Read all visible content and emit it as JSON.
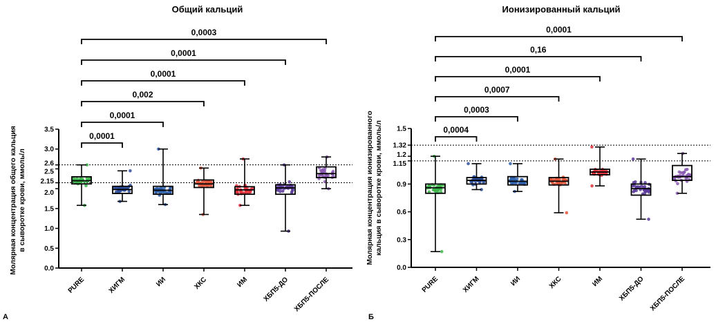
{
  "chart_data": [
    {
      "type": "box",
      "panel_label": "А",
      "title": "Общий кальций",
      "ylabel_lines": [
        "Молярная концентрация общего кальция",
        "в сыворотке крови, ммоль/л"
      ],
      "ylim": [
        0,
        3.5
      ],
      "yticks": [
        "0.0",
        "0.5",
        "1.0",
        "1.5",
        "2.0",
        "2.15",
        "2.5",
        "2.6",
        "3.0",
        "3.5"
      ],
      "ytick_values": [
        0,
        0.5,
        1.0,
        1.5,
        2.0,
        2.15,
        2.5,
        2.6,
        3.0,
        3.5
      ],
      "reference_lines": [
        2.15,
        2.6
      ],
      "categories": [
        "PURE",
        "ХИГМ",
        "ИИ",
        "ХКС",
        "ИМ",
        "ХБП5-ДО",
        "ХБП5-ПОСЛЕ"
      ],
      "colors": [
        "#3cb54a",
        "#2e4f9e",
        "#2e5faa",
        "#e0553a",
        "#e0303a",
        "#5a3a9a",
        "#8a5ab0"
      ],
      "boxes": [
        {
          "min": 1.58,
          "q1": 2.12,
          "median": 2.2,
          "q3": 2.3,
          "max": 2.6
        },
        {
          "min": 1.68,
          "q1": 1.88,
          "median": 1.98,
          "q3": 2.06,
          "max": 2.45
        },
        {
          "min": 1.6,
          "q1": 1.86,
          "median": 1.96,
          "q3": 2.06,
          "max": 3.0
        },
        {
          "min": 1.35,
          "q1": 2.03,
          "median": 2.12,
          "q3": 2.22,
          "max": 2.52
        },
        {
          "min": 1.58,
          "q1": 1.86,
          "median": 1.97,
          "q3": 2.05,
          "max": 2.75
        },
        {
          "min": 0.93,
          "q1": 1.86,
          "median": 2.02,
          "q3": 2.1,
          "max": 2.6
        },
        {
          "min": 2.0,
          "q1": 2.28,
          "median": 2.38,
          "q3": 2.55,
          "max": 2.8
        }
      ],
      "comparisons": [
        {
          "from": "PURE",
          "to": "ХИГМ",
          "p": "0,0001"
        },
        {
          "from": "PURE",
          "to": "ИИ",
          "p": "0,0001"
        },
        {
          "from": "PURE",
          "to": "ХКС",
          "p": "0,002"
        },
        {
          "from": "PURE",
          "to": "ИМ",
          "p": "0,0001"
        },
        {
          "from": "PURE",
          "to": "ХБП5-ДО",
          "p": "0,0001"
        },
        {
          "from": "PURE",
          "to": "ХБП5-ПОСЛЕ",
          "p": "0,0003"
        }
      ]
    },
    {
      "type": "box",
      "panel_label": "Б",
      "title": "Ионизированный кальций",
      "ylabel_lines": [
        "Молярная концентрация ионизированного",
        "кальция в сыворотке крови, ммоль/л"
      ],
      "ylim": [
        0,
        1.5
      ],
      "yticks": [
        "0.0",
        "0.3",
        "0.6",
        "0.9",
        "1.15",
        "1.2",
        "1.32",
        "1.5"
      ],
      "ytick_values": [
        0,
        0.3,
        0.6,
        0.9,
        1.15,
        1.2,
        1.32,
        1.5
      ],
      "reference_lines": [
        1.15,
        1.32
      ],
      "categories": [
        "PURE",
        "ХИГМ",
        "ИИ",
        "ХКС",
        "ИМ",
        "ХБП5-ДО",
        "ХБП5-ПОСЛЕ"
      ],
      "colors": [
        "#3cb54a",
        "#2e4f9e",
        "#2e5faa",
        "#e0553a",
        "#e0303a",
        "#5a3a9a",
        "#8a5ab0"
      ],
      "boxes": [
        {
          "min": 0.17,
          "q1": 0.8,
          "median": 0.86,
          "q3": 0.9,
          "max": 1.2
        },
        {
          "min": 0.84,
          "q1": 0.9,
          "median": 0.94,
          "q3": 0.97,
          "max": 1.12
        },
        {
          "min": 0.82,
          "q1": 0.89,
          "median": 0.93,
          "q3": 0.98,
          "max": 1.12
        },
        {
          "min": 0.59,
          "q1": 0.89,
          "median": 0.93,
          "q3": 0.97,
          "max": 1.17
        },
        {
          "min": 0.88,
          "q1": 1.0,
          "median": 1.03,
          "q3": 1.06,
          "max": 1.3
        },
        {
          "min": 0.52,
          "q1": 0.78,
          "median": 0.85,
          "q3": 0.9,
          "max": 1.17
        },
        {
          "min": 0.8,
          "q1": 0.94,
          "median": 0.98,
          "q3": 1.1,
          "max": 1.23
        }
      ],
      "comparisons": [
        {
          "from": "PURE",
          "to": "ХИГМ",
          "p": "0,0004"
        },
        {
          "from": "PURE",
          "to": "ИИ",
          "p": "0,0003"
        },
        {
          "from": "PURE",
          "to": "ХКС",
          "p": "0,0007"
        },
        {
          "from": "PURE",
          "to": "ИМ",
          "p": "0,0001"
        },
        {
          "from": "PURE",
          "to": "ХБП5-ДО",
          "p": "0,16"
        },
        {
          "from": "PURE",
          "to": "ХБП5-ПОСЛЕ",
          "p": "0,0001"
        }
      ]
    }
  ]
}
